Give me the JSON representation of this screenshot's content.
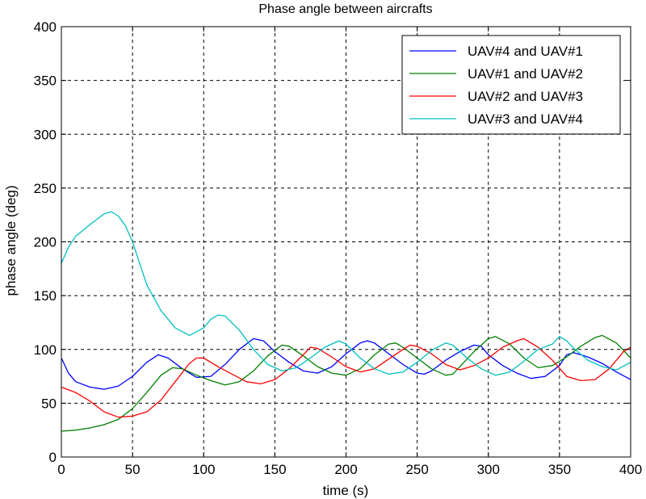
{
  "chart_data": {
    "type": "line",
    "title": "Phase angle between aircrafts",
    "xlabel": "time (s)",
    "ylabel": "phase angle (deg)",
    "xlim": [
      0,
      400
    ],
    "ylim": [
      0,
      400
    ],
    "xticks": [
      0,
      50,
      100,
      150,
      200,
      250,
      300,
      350,
      400
    ],
    "yticks": [
      0,
      50,
      100,
      150,
      200,
      250,
      300,
      350,
      400
    ],
    "grid": true,
    "legend_position": "top-right",
    "series": [
      {
        "name": "UAV#4 and UAV#1",
        "color": "#0000ff",
        "points": [
          [
            0,
            92
          ],
          [
            5,
            78
          ],
          [
            10,
            70
          ],
          [
            20,
            65
          ],
          [
            30,
            63
          ],
          [
            40,
            66
          ],
          [
            50,
            75
          ],
          [
            60,
            88
          ],
          [
            68,
            95
          ],
          [
            75,
            92
          ],
          [
            85,
            82
          ],
          [
            95,
            74
          ],
          [
            105,
            75
          ],
          [
            115,
            86
          ],
          [
            125,
            100
          ],
          [
            135,
            110
          ],
          [
            142,
            108
          ],
          [
            150,
            98
          ],
          [
            160,
            88
          ],
          [
            170,
            80
          ],
          [
            180,
            78
          ],
          [
            190,
            84
          ],
          [
            200,
            96
          ],
          [
            210,
            106
          ],
          [
            215,
            108
          ],
          [
            220,
            106
          ],
          [
            230,
            96
          ],
          [
            240,
            86
          ],
          [
            250,
            78
          ],
          [
            255,
            77
          ],
          [
            260,
            80
          ],
          [
            270,
            90
          ],
          [
            280,
            98
          ],
          [
            290,
            104
          ],
          [
            295,
            103
          ],
          [
            300,
            95
          ],
          [
            310,
            85
          ],
          [
            320,
            78
          ],
          [
            330,
            73
          ],
          [
            340,
            75
          ],
          [
            350,
            85
          ],
          [
            355,
            95
          ],
          [
            360,
            97
          ],
          [
            370,
            93
          ],
          [
            380,
            87
          ],
          [
            390,
            79
          ],
          [
            400,
            72
          ]
        ]
      },
      {
        "name": "UAV#1 and UAV#2",
        "color": "#008000",
        "points": [
          [
            0,
            24
          ],
          [
            10,
            25
          ],
          [
            20,
            27
          ],
          [
            30,
            30
          ],
          [
            40,
            35
          ],
          [
            50,
            45
          ],
          [
            60,
            60
          ],
          [
            70,
            76
          ],
          [
            78,
            83
          ],
          [
            85,
            82
          ],
          [
            95,
            76
          ],
          [
            105,
            71
          ],
          [
            115,
            67
          ],
          [
            125,
            70
          ],
          [
            135,
            80
          ],
          [
            145,
            94
          ],
          [
            155,
            104
          ],
          [
            160,
            103
          ],
          [
            170,
            94
          ],
          [
            180,
            84
          ],
          [
            190,
            78
          ],
          [
            200,
            76
          ],
          [
            210,
            82
          ],
          [
            220,
            95
          ],
          [
            230,
            105
          ],
          [
            235,
            106
          ],
          [
            240,
            102
          ],
          [
            250,
            92
          ],
          [
            260,
            82
          ],
          [
            270,
            76
          ],
          [
            275,
            77
          ],
          [
            280,
            84
          ],
          [
            290,
            98
          ],
          [
            300,
            110
          ],
          [
            305,
            112
          ],
          [
            315,
            105
          ],
          [
            325,
            92
          ],
          [
            335,
            83
          ],
          [
            345,
            85
          ],
          [
            355,
            93
          ],
          [
            365,
            103
          ],
          [
            375,
            111
          ],
          [
            380,
            113
          ],
          [
            390,
            106
          ],
          [
            400,
            92
          ]
        ]
      },
      {
        "name": "UAV#2 and UAV#3",
        "color": "#ff0000",
        "points": [
          [
            0,
            65
          ],
          [
            10,
            60
          ],
          [
            20,
            52
          ],
          [
            30,
            42
          ],
          [
            40,
            37
          ],
          [
            50,
            38
          ],
          [
            60,
            42
          ],
          [
            70,
            53
          ],
          [
            80,
            70
          ],
          [
            90,
            87
          ],
          [
            95,
            92
          ],
          [
            100,
            92
          ],
          [
            110,
            84
          ],
          [
            120,
            77
          ],
          [
            130,
            70
          ],
          [
            140,
            68
          ],
          [
            150,
            72
          ],
          [
            160,
            82
          ],
          [
            170,
            95
          ],
          [
            175,
            102
          ],
          [
            180,
            101
          ],
          [
            190,
            93
          ],
          [
            200,
            84
          ],
          [
            210,
            79
          ],
          [
            220,
            82
          ],
          [
            230,
            91
          ],
          [
            240,
            100
          ],
          [
            245,
            104
          ],
          [
            250,
            103
          ],
          [
            260,
            96
          ],
          [
            270,
            86
          ],
          [
            280,
            81
          ],
          [
            290,
            85
          ],
          [
            300,
            92
          ],
          [
            310,
            102
          ],
          [
            320,
            108
          ],
          [
            325,
            110
          ],
          [
            335,
            102
          ],
          [
            345,
            90
          ],
          [
            355,
            75
          ],
          [
            365,
            71
          ],
          [
            375,
            72
          ],
          [
            385,
            82
          ],
          [
            395,
            98
          ],
          [
            400,
            102
          ]
        ]
      },
      {
        "name": "UAV#3 and UAV#4",
        "color": "#00bfbf",
        "points": [
          [
            0,
            180
          ],
          [
            5,
            195
          ],
          [
            10,
            205
          ],
          [
            20,
            216
          ],
          [
            30,
            226
          ],
          [
            35,
            228
          ],
          [
            40,
            224
          ],
          [
            45,
            215
          ],
          [
            50,
            200
          ],
          [
            55,
            180
          ],
          [
            60,
            160
          ],
          [
            70,
            136
          ],
          [
            80,
            120
          ],
          [
            90,
            113
          ],
          [
            100,
            120
          ],
          [
            105,
            128
          ],
          [
            110,
            132
          ],
          [
            115,
            131
          ],
          [
            125,
            118
          ],
          [
            135,
            100
          ],
          [
            145,
            86
          ],
          [
            155,
            80
          ],
          [
            165,
            83
          ],
          [
            175,
            92
          ],
          [
            185,
            102
          ],
          [
            195,
            108
          ],
          [
            200,
            105
          ],
          [
            210,
            92
          ],
          [
            220,
            82
          ],
          [
            230,
            77
          ],
          [
            240,
            79
          ],
          [
            250,
            88
          ],
          [
            260,
            99
          ],
          [
            270,
            106
          ],
          [
            275,
            104
          ],
          [
            285,
            92
          ],
          [
            295,
            82
          ],
          [
            305,
            76
          ],
          [
            315,
            79
          ],
          [
            325,
            89
          ],
          [
            335,
            100
          ],
          [
            345,
            105
          ],
          [
            350,
            112
          ],
          [
            355,
            108
          ],
          [
            360,
            101
          ],
          [
            370,
            90
          ],
          [
            380,
            84
          ],
          [
            390,
            81
          ],
          [
            400,
            88
          ]
        ]
      }
    ]
  }
}
